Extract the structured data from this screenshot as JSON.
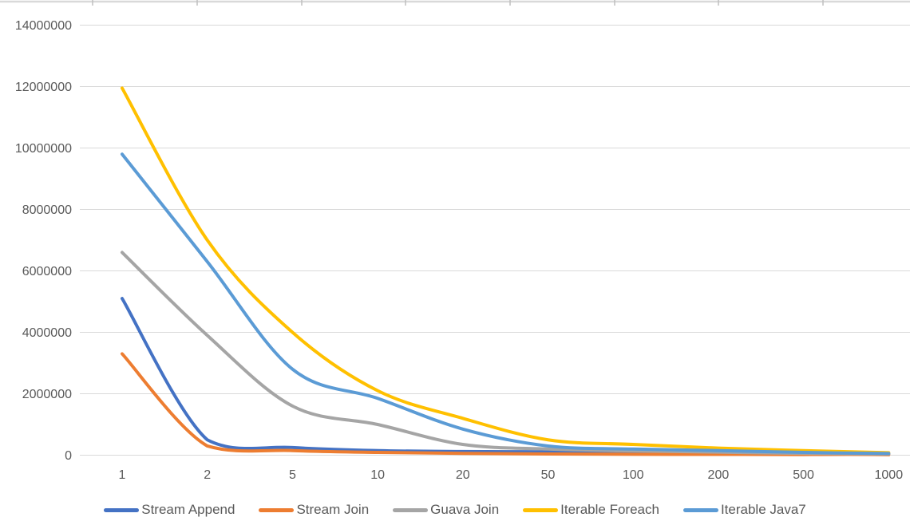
{
  "chart_data": {
    "type": "line",
    "title": "",
    "xlabel": "",
    "ylabel": "",
    "categories": [
      1,
      2,
      5,
      10,
      20,
      50,
      100,
      200,
      500,
      1000
    ],
    "x_tick_labels": [
      "1",
      "2",
      "5",
      "10",
      "20",
      "50",
      "100",
      "200",
      "500",
      "1000"
    ],
    "series": [
      {
        "name": "Stream Append",
        "color": "#4472C4",
        "values": [
          5100000,
          500000,
          250000,
          150000,
          120000,
          110000,
          100000,
          80000,
          60000,
          50000
        ]
      },
      {
        "name": "Stream Join",
        "color": "#ED7D31",
        "values": [
          3300000,
          300000,
          150000,
          90000,
          60000,
          40000,
          30000,
          25000,
          20000,
          15000
        ]
      },
      {
        "name": "Guava Join",
        "color": "#A5A5A5",
        "values": [
          6600000,
          3900000,
          1600000,
          1000000,
          350000,
          200000,
          140000,
          100000,
          60000,
          40000
        ]
      },
      {
        "name": "Iterable Foreach",
        "color": "#FFC000",
        "values": [
          11950000,
          7000000,
          4000000,
          2100000,
          1200000,
          500000,
          350000,
          230000,
          150000,
          80000
        ]
      },
      {
        "name": "Iterable Java7",
        "color": "#5B9BD5",
        "values": [
          9800000,
          6300000,
          2800000,
          1850000,
          850000,
          300000,
          200000,
          150000,
          90000,
          55000
        ]
      }
    ],
    "ylim": [
      0,
      14000000
    ],
    "y_tick_step": 2000000,
    "y_tick_labels": [
      "0",
      "2000000",
      "4000000",
      "6000000",
      "8000000",
      "10000000",
      "12000000",
      "14000000"
    ],
    "grid": true,
    "smoothed_lines": true,
    "legend_position": "bottom",
    "colors": {
      "axis_text": "#595959",
      "gridline": "#D9D9D9",
      "top_axis_line": "#D9D9D9",
      "top_axis_tick": "#BFBFBF",
      "background": "#FFFFFF"
    }
  },
  "top_axis_strip": {
    "tick_positions": [
      116,
      247,
      378,
      508,
      639,
      770,
      900,
      1031
    ]
  }
}
